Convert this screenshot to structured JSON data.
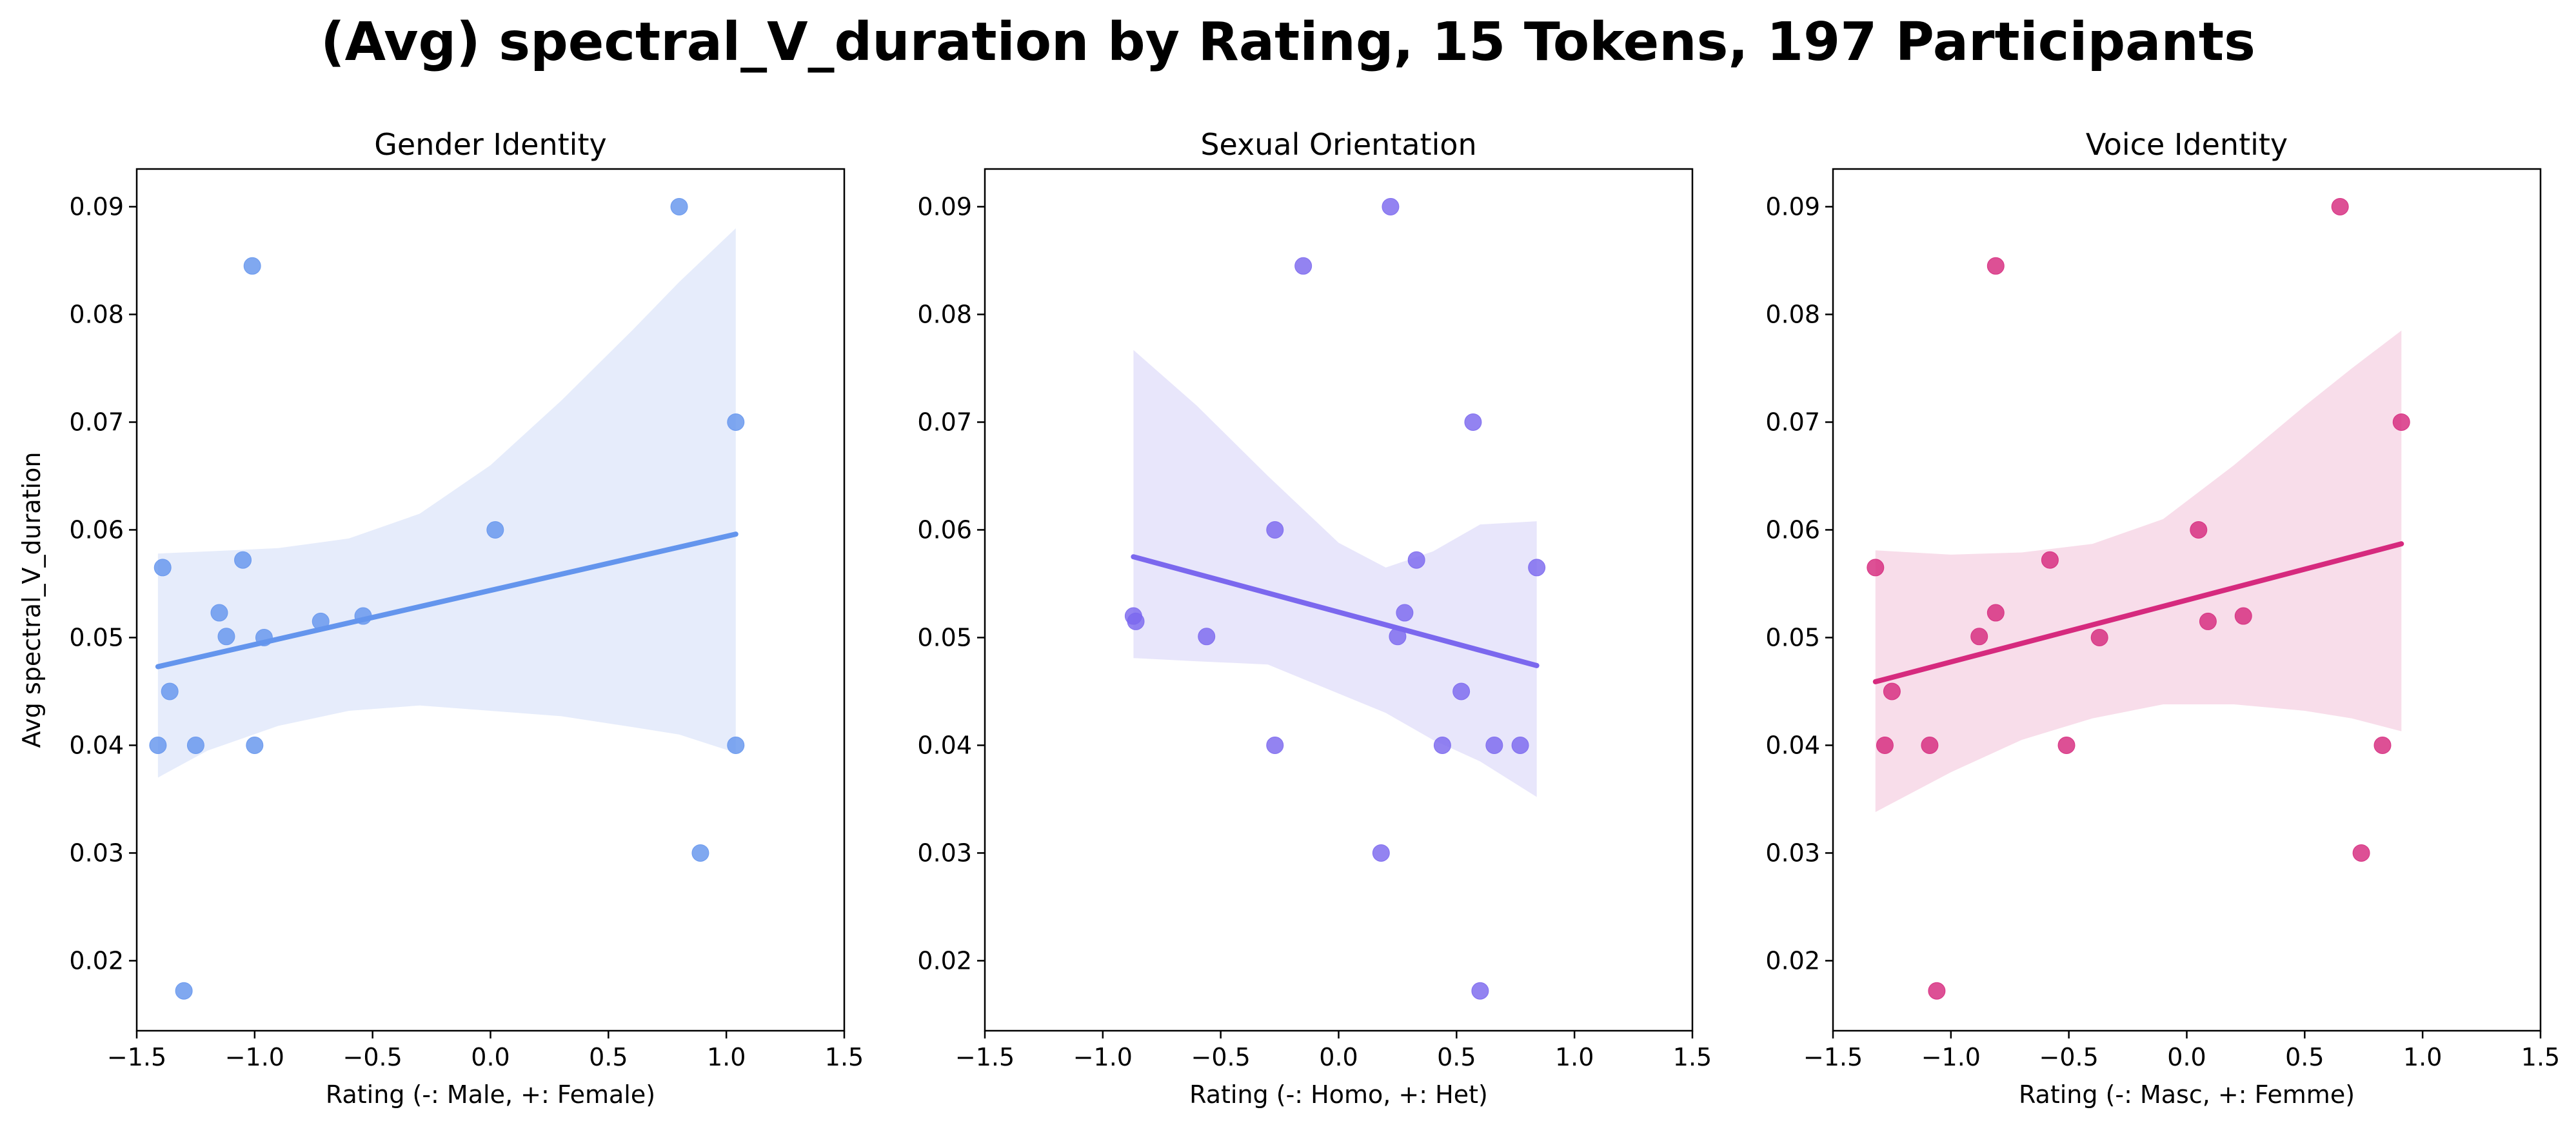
{
  "figure": {
    "title": "(Avg) spectral_V_duration by Rating, 15 Tokens, 197 Participants"
  },
  "chart_data": [
    {
      "type": "scatter",
      "title": "Gender Identity",
      "xlabel": "Rating (-: Male, +: Female)",
      "ylabel": "Avg spectral_V_duration",
      "xlim": [
        -1.5,
        1.5
      ],
      "ylim": [
        0.0135,
        0.0935
      ],
      "xticks": [
        -1.5,
        -1.0,
        -0.5,
        0.0,
        0.5,
        1.0,
        1.5
      ],
      "xtick_labels": [
        "−1.5",
        "−1.0",
        "−0.5",
        "0.0",
        "0.5",
        "1.0",
        "1.5"
      ],
      "yticks": [
        0.02,
        0.03,
        0.04,
        0.05,
        0.06,
        0.07,
        0.08,
        0.09
      ],
      "ytick_labels": [
        "0.02",
        "0.03",
        "0.04",
        "0.05",
        "0.06",
        "0.07",
        "0.08",
        "0.09"
      ],
      "grid": false,
      "color": "#6495ED",
      "band_color": "#E6ECFB",
      "points": [
        {
          "x": 0.8,
          "y": 0.09
        },
        {
          "x": -1.01,
          "y": 0.0845
        },
        {
          "x": 1.04,
          "y": 0.07
        },
        {
          "x": 0.02,
          "y": 0.06
        },
        {
          "x": -1.05,
          "y": 0.0572
        },
        {
          "x": -1.39,
          "y": 0.0565
        },
        {
          "x": -1.15,
          "y": 0.0523
        },
        {
          "x": -0.54,
          "y": 0.052
        },
        {
          "x": -0.72,
          "y": 0.0515
        },
        {
          "x": -1.12,
          "y": 0.0501
        },
        {
          "x": -0.96,
          "y": 0.05
        },
        {
          "x": -1.36,
          "y": 0.045
        },
        {
          "x": -1.41,
          "y": 0.04
        },
        {
          "x": -1.25,
          "y": 0.04
        },
        {
          "x": -1.0,
          "y": 0.04
        },
        {
          "x": 1.04,
          "y": 0.04
        },
        {
          "x": 0.89,
          "y": 0.03
        },
        {
          "x": -1.3,
          "y": 0.0172
        }
      ],
      "regression": {
        "x": [
          -1.41,
          1.04
        ],
        "y": [
          0.0473,
          0.0596
        ]
      },
      "ci_band": {
        "x": [
          -1.41,
          -1.2,
          -0.9,
          -0.6,
          -0.3,
          0.0,
          0.3,
          0.6,
          0.8,
          1.04
        ],
        "upper": [
          0.0578,
          0.058,
          0.0583,
          0.0592,
          0.0615,
          0.066,
          0.072,
          0.0785,
          0.083,
          0.088
        ],
        "lower": [
          0.037,
          0.0395,
          0.0418,
          0.0432,
          0.0437,
          0.0432,
          0.0427,
          0.0417,
          0.041,
          0.0393
        ]
      }
    },
    {
      "type": "scatter",
      "title": "Sexual Orientation",
      "xlabel": "Rating (-: Homo, +: Het)",
      "ylabel": "",
      "xlim": [
        -1.5,
        1.5
      ],
      "ylim": [
        0.0135,
        0.0935
      ],
      "xticks": [
        -1.5,
        -1.0,
        -0.5,
        0.0,
        0.5,
        1.0,
        1.5
      ],
      "xtick_labels": [
        "−1.5",
        "−1.0",
        "−0.5",
        "0.0",
        "0.5",
        "1.0",
        "1.5"
      ],
      "yticks": [
        0.02,
        0.03,
        0.04,
        0.05,
        0.06,
        0.07,
        0.08,
        0.09
      ],
      "ytick_labels": [
        "0.02",
        "0.03",
        "0.04",
        "0.05",
        "0.06",
        "0.07",
        "0.08",
        "0.09"
      ],
      "grid": false,
      "color": "#7B68EE",
      "band_color": "#E8E6FB",
      "points": [
        {
          "x": 0.22,
          "y": 0.09
        },
        {
          "x": -0.15,
          "y": 0.0845
        },
        {
          "x": 0.57,
          "y": 0.07
        },
        {
          "x": -0.27,
          "y": 0.06
        },
        {
          "x": 0.33,
          "y": 0.0572
        },
        {
          "x": 0.84,
          "y": 0.0565
        },
        {
          "x": 0.28,
          "y": 0.0523
        },
        {
          "x": -0.87,
          "y": 0.052
        },
        {
          "x": -0.86,
          "y": 0.0515
        },
        {
          "x": -0.56,
          "y": 0.0501
        },
        {
          "x": 0.25,
          "y": 0.0501
        },
        {
          "x": 0.52,
          "y": 0.045
        },
        {
          "x": -0.27,
          "y": 0.04
        },
        {
          "x": 0.44,
          "y": 0.04
        },
        {
          "x": 0.66,
          "y": 0.04
        },
        {
          "x": 0.77,
          "y": 0.04
        },
        {
          "x": 0.18,
          "y": 0.03
        },
        {
          "x": 0.6,
          "y": 0.0172
        }
      ],
      "regression": {
        "x": [
          -0.87,
          0.84
        ],
        "y": [
          0.0575,
          0.0474
        ]
      },
      "ci_band": {
        "x": [
          -0.87,
          -0.6,
          -0.3,
          0.0,
          0.2,
          0.4,
          0.6,
          0.84
        ],
        "upper": [
          0.0767,
          0.0715,
          0.065,
          0.0588,
          0.0565,
          0.058,
          0.0605,
          0.0608
        ],
        "lower": [
          0.0481,
          0.0478,
          0.0475,
          0.0448,
          0.043,
          0.0405,
          0.0385,
          0.0352
        ]
      }
    },
    {
      "type": "scatter",
      "title": "Voice Identity",
      "xlabel": "Rating (-: Masc, +: Femme)",
      "ylabel": "",
      "xlim": [
        -1.5,
        1.5
      ],
      "ylim": [
        0.0135,
        0.0935
      ],
      "xticks": [
        -1.5,
        -1.0,
        -0.5,
        0.0,
        0.5,
        1.0,
        1.5
      ],
      "xtick_labels": [
        "−1.5",
        "−1.0",
        "−0.5",
        "0.0",
        "0.5",
        "1.0",
        "1.5"
      ],
      "yticks": [
        0.02,
        0.03,
        0.04,
        0.05,
        0.06,
        0.07,
        0.08,
        0.09
      ],
      "ytick_labels": [
        "0.02",
        "0.03",
        "0.04",
        "0.05",
        "0.06",
        "0.07",
        "0.08",
        "0.09"
      ],
      "grid": false,
      "color": "#D62A7E",
      "band_color": "#F8DDEA",
      "points": [
        {
          "x": 0.65,
          "y": 0.09
        },
        {
          "x": -0.81,
          "y": 0.0845
        },
        {
          "x": 0.91,
          "y": 0.07
        },
        {
          "x": 0.05,
          "y": 0.06
        },
        {
          "x": -0.58,
          "y": 0.0572
        },
        {
          "x": -1.32,
          "y": 0.0565
        },
        {
          "x": -0.81,
          "y": 0.0523
        },
        {
          "x": 0.24,
          "y": 0.052
        },
        {
          "x": 0.09,
          "y": 0.0515
        },
        {
          "x": -0.88,
          "y": 0.0501
        },
        {
          "x": -0.37,
          "y": 0.05
        },
        {
          "x": -1.25,
          "y": 0.045
        },
        {
          "x": -1.28,
          "y": 0.04
        },
        {
          "x": -1.09,
          "y": 0.04
        },
        {
          "x": -0.51,
          "y": 0.04
        },
        {
          "x": 0.83,
          "y": 0.04
        },
        {
          "x": 0.74,
          "y": 0.03
        },
        {
          "x": -1.06,
          "y": 0.0172
        }
      ],
      "regression": {
        "x": [
          -1.32,
          0.91
        ],
        "y": [
          0.0459,
          0.0587
        ]
      },
      "ci_band": {
        "x": [
          -1.32,
          -1.0,
          -0.7,
          -0.4,
          -0.1,
          0.2,
          0.5,
          0.7,
          0.91
        ],
        "upper": [
          0.0581,
          0.0577,
          0.0579,
          0.0587,
          0.061,
          0.066,
          0.0715,
          0.075,
          0.0785
        ],
        "lower": [
          0.0338,
          0.0375,
          0.0405,
          0.0425,
          0.0438,
          0.0438,
          0.0432,
          0.0425,
          0.0413
        ]
      }
    }
  ]
}
